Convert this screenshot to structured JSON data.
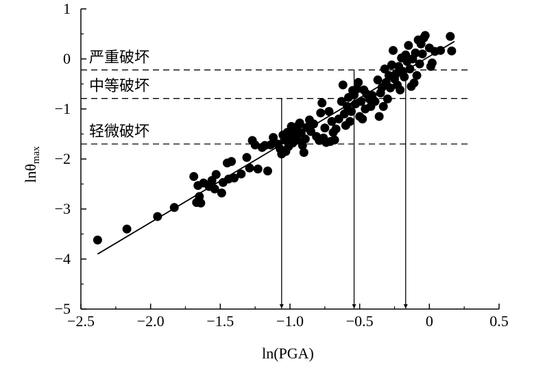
{
  "chart_data": {
    "type": "scatter",
    "title": "",
    "xlabel": "ln(PGA)",
    "ylabel": "lnθmax",
    "ylabel_main": "lnθ",
    "ylabel_sub": "max",
    "xlim": [
      -2.5,
      0.5
    ],
    "ylim": [
      -5,
      1
    ],
    "xticks": [
      -2.5,
      -2.0,
      -1.5,
      -1.0,
      -0.5,
      0,
      0.5
    ],
    "xtick_labels": [
      "−2.5",
      "−2.0",
      "−1.5",
      "−1.0",
      "−0.5",
      "0",
      "0.5"
    ],
    "yticks": [
      1,
      0,
      -1,
      -2,
      -3,
      -4,
      -5
    ],
    "ytick_labels": [
      "1",
      "0",
      "−1",
      "−2",
      "−3",
      "−4",
      "−5"
    ],
    "grid": false,
    "fit_line": {
      "x": [
        -2.38,
        0.18
      ],
      "y": [
        -3.9,
        0.35
      ]
    },
    "thresholds": [
      {
        "label": "严重破坏",
        "y": -0.22
      },
      {
        "label": "中等破坏",
        "y": -0.79
      },
      {
        "label": "轻微破坏",
        "y": -1.7
      }
    ],
    "arrows": [
      {
        "x": -1.06,
        "from_y": -0.79,
        "to_y": -5
      },
      {
        "x": -0.54,
        "from_y": -0.22,
        "to_y": -5
      },
      {
        "x": -0.17,
        "from_y": -0.22,
        "to_y": -5
      }
    ],
    "points": [
      [
        -2.38,
        -3.62
      ],
      [
        -2.17,
        -3.4
      ],
      [
        -1.95,
        -3.15
      ],
      [
        -1.83,
        -2.97
      ],
      [
        -1.69,
        -2.35
      ],
      [
        -1.67,
        -2.87
      ],
      [
        -1.66,
        -2.53
      ],
      [
        -1.65,
        -2.75
      ],
      [
        -1.64,
        -2.88
      ],
      [
        -1.62,
        -2.48
      ],
      [
        -1.58,
        -2.55
      ],
      [
        -1.56,
        -2.43
      ],
      [
        -1.54,
        -2.6
      ],
      [
        -1.53,
        -2.31
      ],
      [
        -1.49,
        -2.68
      ],
      [
        -1.48,
        -2.47
      ],
      [
        -1.45,
        -2.08
      ],
      [
        -1.44,
        -2.4
      ],
      [
        -1.42,
        -2.05
      ],
      [
        -1.4,
        -2.38
      ],
      [
        -1.35,
        -2.3
      ],
      [
        -1.31,
        -1.97
      ],
      [
        -1.29,
        -2.18
      ],
      [
        -1.27,
        -1.63
      ],
      [
        -1.25,
        -1.72
      ],
      [
        -1.23,
        -2.2
      ],
      [
        -1.2,
        -1.77
      ],
      [
        -1.18,
        -1.73
      ],
      [
        -1.16,
        -2.24
      ],
      [
        -1.14,
        -1.72
      ],
      [
        -1.12,
        -1.57
      ],
      [
        -1.09,
        -1.7
      ],
      [
        -1.07,
        -1.8
      ],
      [
        -1.06,
        -1.9
      ],
      [
        -1.05,
        -1.52
      ],
      [
        -1.04,
        -1.62
      ],
      [
        -1.03,
        -1.85
      ],
      [
        -1.02,
        -1.47
      ],
      [
        -1.01,
        -1.75
      ],
      [
        -1.0,
        -1.58
      ],
      [
        -0.99,
        -1.35
      ],
      [
        -0.98,
        -1.68
      ],
      [
        -0.97,
        -1.52
      ],
      [
        -0.96,
        -1.42
      ],
      [
        -0.95,
        -1.62
      ],
      [
        -0.94,
        -1.33
      ],
      [
        -0.93,
        -1.28
      ],
      [
        -0.92,
        -1.48
      ],
      [
        -0.91,
        -1.73
      ],
      [
        -0.9,
        -1.87
      ],
      [
        -0.89,
        -1.6
      ],
      [
        -0.88,
        -1.37
      ],
      [
        -0.86,
        -1.22
      ],
      [
        -0.85,
        -1.45
      ],
      [
        -0.83,
        -1.3
      ],
      [
        -0.81,
        -1.55
      ],
      [
        -0.79,
        -1.63
      ],
      [
        -0.78,
        -1.08
      ],
      [
        -0.77,
        -0.88
      ],
      [
        -0.76,
        -1.58
      ],
      [
        -0.75,
        -1.38
      ],
      [
        -0.74,
        -1.67
      ],
      [
        -0.72,
        -1.05
      ],
      [
        -0.71,
        -1.65
      ],
      [
        -0.7,
        -1.25
      ],
      [
        -0.69,
        -1.47
      ],
      [
        -0.68,
        -1.62
      ],
      [
        -0.67,
        -1.4
      ],
      [
        -0.65,
        -1.2
      ],
      [
        -0.63,
        -0.85
      ],
      [
        -0.62,
        -0.52
      ],
      [
        -0.61,
        -1.1
      ],
      [
        -0.6,
        -1.33
      ],
      [
        -0.59,
        -0.95
      ],
      [
        -0.58,
        -0.77
      ],
      [
        -0.57,
        -1.25
      ],
      [
        -0.56,
        -1.05
      ],
      [
        -0.55,
        -0.63
      ],
      [
        -0.54,
        -0.72
      ],
      [
        -0.53,
        -0.9
      ],
      [
        -0.52,
        -0.6
      ],
      [
        -0.51,
        -0.47
      ],
      [
        -0.5,
        -1.15
      ],
      [
        -0.49,
        -0.85
      ],
      [
        -0.48,
        -1.2
      ],
      [
        -0.47,
        -0.62
      ],
      [
        -0.46,
        -1.0
      ],
      [
        -0.45,
        -0.7
      ],
      [
        -0.43,
        -0.8
      ],
      [
        -0.42,
        -0.95
      ],
      [
        -0.41,
        -0.73
      ],
      [
        -0.39,
        -0.85
      ],
      [
        -0.37,
        -0.42
      ],
      [
        -0.36,
        -1.15
      ],
      [
        -0.35,
        -0.68
      ],
      [
        -0.34,
        -0.57
      ],
      [
        -0.33,
        -0.95
      ],
      [
        -0.32,
        -0.2
      ],
      [
        -0.31,
        -0.47
      ],
      [
        -0.3,
        -0.8
      ],
      [
        -0.29,
        -0.33
      ],
      [
        -0.28,
        -0.58
      ],
      [
        -0.27,
        -0.12
      ],
      [
        -0.26,
        0.17
      ],
      [
        -0.25,
        -0.4
      ],
      [
        -0.24,
        -0.3
      ],
      [
        -0.23,
        -0.52
      ],
      [
        -0.22,
        -0.15
      ],
      [
        -0.21,
        -0.62
      ],
      [
        -0.2,
        0.02
      ],
      [
        -0.19,
        -0.25
      ],
      [
        -0.18,
        -0.36
      ],
      [
        -0.17,
        0.08
      ],
      [
        -0.16,
        -0.05
      ],
      [
        -0.15,
        0.27
      ],
      [
        -0.14,
        -0.2
      ],
      [
        -0.13,
        -0.55
      ],
      [
        -0.12,
        0.0
      ],
      [
        -0.11,
        -0.48
      ],
      [
        -0.1,
        0.12
      ],
      [
        -0.09,
        -0.33
      ],
      [
        -0.08,
        0.38
      ],
      [
        -0.07,
        -0.1
      ],
      [
        -0.06,
        0.3
      ],
      [
        -0.05,
        0.1
      ],
      [
        -0.04,
        0.42
      ],
      [
        -0.03,
        0.47
      ],
      [
        0.0,
        0.22
      ],
      [
        0.01,
        -0.15
      ],
      [
        0.02,
        -0.08
      ],
      [
        0.04,
        0.15
      ],
      [
        0.08,
        0.17
      ],
      [
        0.15,
        0.45
      ],
      [
        0.16,
        0.16
      ]
    ]
  }
}
